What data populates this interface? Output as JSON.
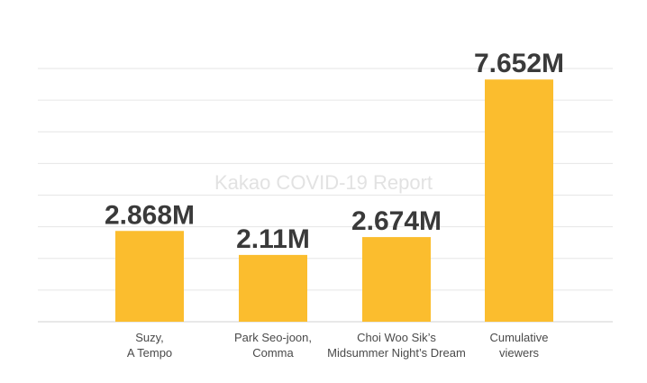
{
  "chart_data": {
    "type": "bar",
    "categories": [
      [
        "Suzy,",
        "A Tempo"
      ],
      [
        "Park Seo-joon,",
        "Comma"
      ],
      [
        "Choi Woo Sik’s",
        "Midsummer Night’s Dream"
      ],
      [
        "Cumulative",
        "viewers"
      ]
    ],
    "values": [
      2.868,
      2.11,
      2.674,
      7.652
    ],
    "data_labels": [
      "2.868M",
      "2.11M",
      "2.674M",
      "7.652M"
    ],
    "ylim": [
      0,
      8
    ],
    "grid": true,
    "bar_color": "#FBBD2E",
    "watermark": "Kakao COVID-19 Report"
  }
}
